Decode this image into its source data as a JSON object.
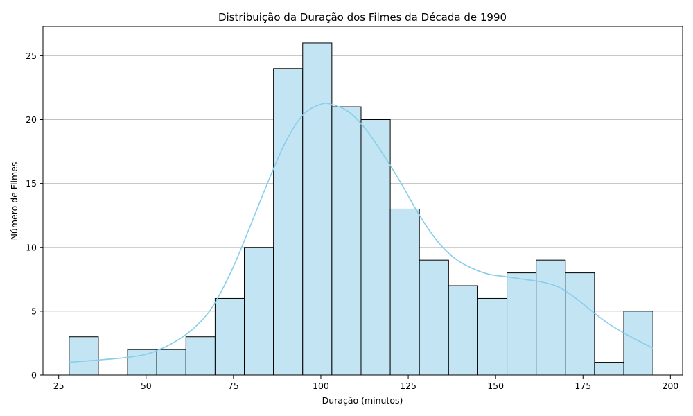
{
  "chart_data": {
    "type": "bar",
    "title": "Distribuição da Duração dos Filmes da Década de 1990",
    "xlabel": "Duração (minutos)",
    "ylabel": "Número de Filmes",
    "xlim": [
      20.5,
      203.5
    ],
    "ylim": [
      0,
      27.3
    ],
    "xticks": [
      25,
      50,
      75,
      100,
      125,
      150,
      175,
      200
    ],
    "yticks": [
      0,
      5,
      10,
      15,
      20,
      25
    ],
    "grid": "y",
    "bin_edges": [
      28,
      36.35,
      44.7,
      53.05,
      61.4,
      69.75,
      78.1,
      86.45,
      94.8,
      103.15,
      111.5,
      119.85,
      128.2,
      136.55,
      144.9,
      153.25,
      161.6,
      169.95,
      178.3,
      186.65,
      195
    ],
    "counts": [
      3,
      0,
      2,
      2,
      3,
      6,
      10,
      24,
      26,
      21,
      20,
      13,
      9,
      7,
      6,
      8,
      9,
      8,
      1,
      5
    ],
    "kde": {
      "x": [
        28,
        35,
        45,
        52,
        60,
        66,
        70,
        75,
        80,
        85,
        90,
        95,
        100,
        103,
        108,
        113,
        118,
        123,
        128,
        133,
        138,
        143,
        148,
        153,
        158,
        163,
        168,
        173,
        178,
        183,
        188,
        195
      ],
      "y": [
        1.0,
        1.15,
        1.4,
        1.8,
        2.9,
        4.3,
        5.8,
        8.5,
        11.8,
        15.2,
        18.3,
        20.4,
        21.2,
        21.2,
        20.6,
        19.2,
        17.2,
        15.0,
        12.6,
        10.6,
        9.2,
        8.4,
        7.9,
        7.7,
        7.5,
        7.3,
        6.9,
        6.0,
        4.9,
        3.9,
        3.1,
        2.1
      ]
    },
    "colors": {
      "bar_fill": "#c2e4f3",
      "bar_edge": "#000000",
      "kde_line": "#87ceeb",
      "grid": "#c0c0c0"
    }
  }
}
